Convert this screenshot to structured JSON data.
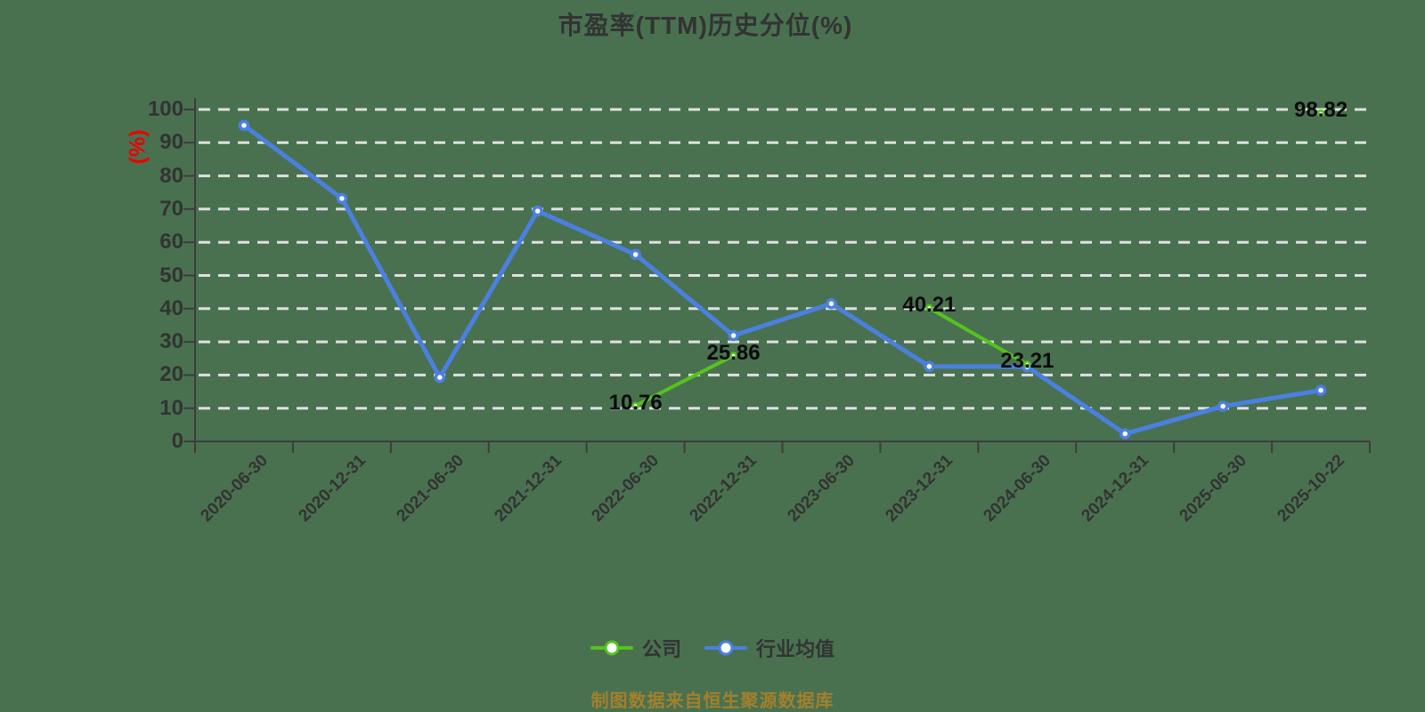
{
  "title": "市盈率(TTM)历史分位(%)",
  "y_axis_unit": "(%)",
  "footer_note": "制图数据来自恒生聚源数据库",
  "legend": {
    "items": [
      {
        "label": "公司",
        "color": "#55c31e"
      },
      {
        "label": "行业均值",
        "color": "#4b80e1"
      }
    ]
  },
  "colors": {
    "background": "#497150",
    "company": "#55c31e",
    "industry": "#4b80e1",
    "axis": "#3d3d3d",
    "text": "#333333",
    "gridline": "#e8e8e8",
    "unit_label": "#ee0000",
    "footer": "#a3802c",
    "data_label": "#0a0a0a"
  },
  "chart_data": {
    "type": "line",
    "title": "市盈率(TTM)历史分位(%)",
    "ylabel": "(%)",
    "ylim": [
      0,
      100
    ],
    "y_ticks": [
      0,
      10,
      20,
      30,
      40,
      50,
      60,
      70,
      80,
      90,
      100
    ],
    "grid": "horizontal-dashed-white",
    "legend_position": "bottom-center",
    "categories": [
      "2020-06-30",
      "2020-12-31",
      "2021-06-30",
      "2021-12-31",
      "2022-06-30",
      "2022-12-31",
      "2023-06-30",
      "2023-12-31",
      "2024-06-30",
      "2024-12-31",
      "2025-06-30",
      "2025-10-22"
    ],
    "series": [
      {
        "name": "公司",
        "color": "#55c31e",
        "show_labels": true,
        "values": [
          null,
          null,
          null,
          null,
          10.76,
          25.86,
          null,
          40.21,
          23.21,
          null,
          null,
          98.82
        ]
      },
      {
        "name": "行业均值",
        "color": "#4b80e1",
        "show_labels": false,
        "values": [
          95.2,
          73.2,
          19.3,
          69.4,
          56.3,
          31.9,
          41.5,
          22.6,
          22.5,
          2.3,
          10.6,
          15.4
        ]
      }
    ]
  }
}
